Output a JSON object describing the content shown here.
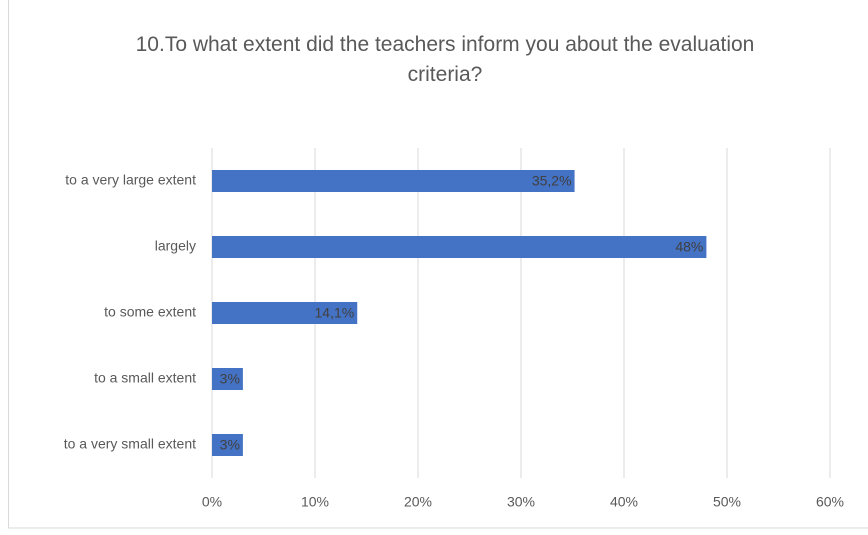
{
  "chart_data": {
    "type": "bar",
    "orientation": "horizontal",
    "title": "10.To what extent did the teachers inform you about the evaluation criteria?",
    "categories": [
      "to a very large extent",
      "largely",
      "to some extent",
      "to a small extent",
      "to a very small extent"
    ],
    "values": [
      35.2,
      48,
      14.1,
      3,
      3
    ],
    "value_labels": [
      "35,2%",
      "48%",
      "14,1%",
      "3%",
      "3%"
    ],
    "color": "#4472c4",
    "xlim": [
      0,
      60
    ],
    "xticks": [
      {
        "value": 0,
        "label": "0%"
      },
      {
        "value": 10,
        "label": "10%"
      },
      {
        "value": 20,
        "label": "20%"
      },
      {
        "value": 30,
        "label": "30%"
      },
      {
        "value": 40,
        "label": "40%"
      },
      {
        "value": 50,
        "label": "50%"
      },
      {
        "value": 60,
        "label": "60%"
      }
    ],
    "grid": true
  }
}
